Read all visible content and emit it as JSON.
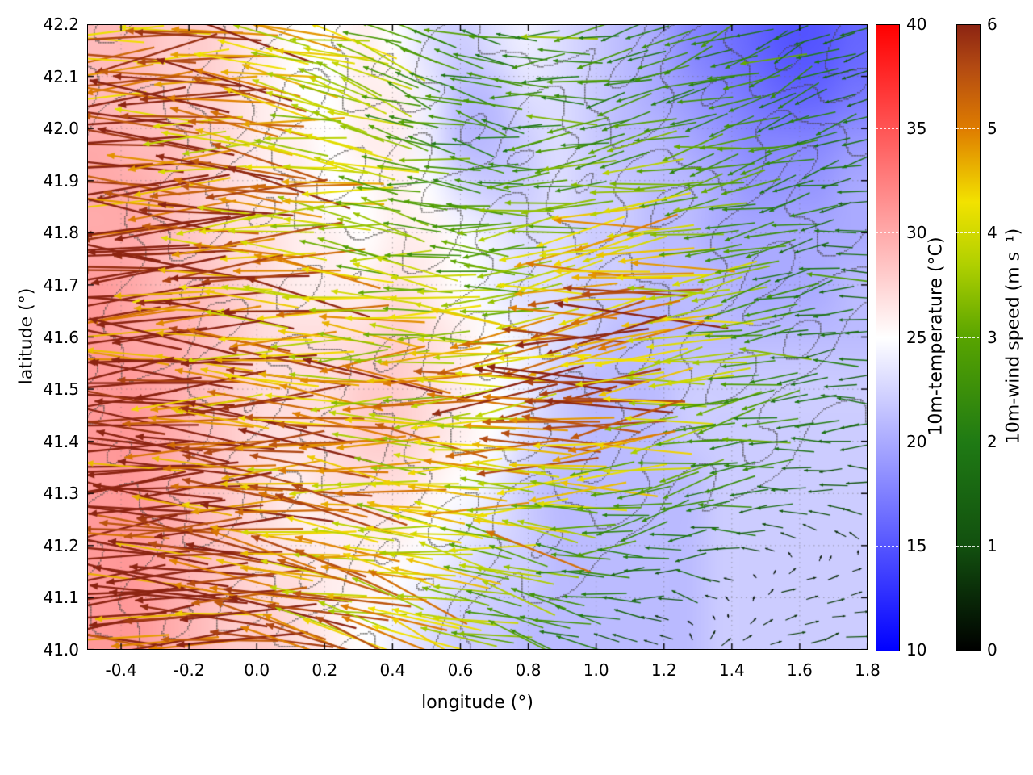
{
  "figure": {
    "title": "",
    "xlabel": "longitude (°)",
    "ylabel": "latitude (°)"
  },
  "chart_data": {
    "type": "heatmap",
    "title": "",
    "xlabel": "longitude (°)",
    "ylabel": "latitude (°)",
    "xlim": [
      -0.5,
      1.8
    ],
    "ylim": [
      41.0,
      42.2
    ],
    "grid": "dotted",
    "overlays": [
      "wind-vector-arrows",
      "terrain-contour-lines"
    ],
    "x_ticks": [
      -0.4,
      -0.2,
      0.0,
      0.2,
      0.4,
      0.6,
      0.8,
      1.0,
      1.2,
      1.4,
      1.6,
      1.8
    ],
    "x_tick_labels": [
      "-0.4",
      "-0.2",
      "0.0",
      "0.2",
      "0.4",
      "0.6",
      "0.8",
      "1.0",
      "1.2",
      "1.4",
      "1.6",
      "1.8"
    ],
    "y_ticks": [
      41.0,
      41.1,
      41.2,
      41.3,
      41.4,
      41.5,
      41.6,
      41.7,
      41.8,
      41.9,
      42.0,
      42.1,
      42.2
    ],
    "y_tick_labels": [
      "41.0",
      "41.1",
      "41.2",
      "41.3",
      "41.4",
      "41.5",
      "41.6",
      "41.7",
      "41.8",
      "41.9",
      "42.0",
      "42.1",
      "42.2"
    ],
    "colorbar_temperature": {
      "label": "10m-temperature (°C)",
      "min": 10,
      "max": 40,
      "ticks": [
        10,
        15,
        20,
        25,
        30,
        35,
        40
      ],
      "tick_labels": [
        "10",
        "15",
        "20",
        "25",
        "30",
        "35",
        "40"
      ],
      "stops": [
        [
          10,
          "#0000ff"
        ],
        [
          25,
          "#ffffff"
        ],
        [
          40,
          "#ff0000"
        ]
      ]
    },
    "colorbar_wind": {
      "label": "10m-wind speed (m s⁻¹)",
      "min": 0,
      "max": 6,
      "ticks": [
        0,
        1,
        2,
        3,
        4,
        5,
        6
      ],
      "tick_labels": [
        "0",
        "1",
        "2",
        "3",
        "4",
        "5",
        "6"
      ],
      "stops": [
        [
          0,
          "#000000"
        ],
        [
          1,
          "#12500f"
        ],
        [
          2,
          "#1f7a14"
        ],
        [
          3,
          "#58a400"
        ],
        [
          3.7,
          "#b0d000"
        ],
        [
          4.3,
          "#f2e200"
        ],
        [
          5,
          "#df7d00"
        ],
        [
          5.6,
          "#b34a12"
        ],
        [
          6,
          "#8c2412"
        ]
      ]
    },
    "temperature_grid": {
      "units": "°C",
      "lon_range": [
        -0.5,
        1.8
      ],
      "lat_range": [
        41.0,
        42.2
      ],
      "order": "rows north to south",
      "values": [
        [
          29,
          29,
          28,
          28,
          27,
          26,
          25,
          25,
          26,
          25,
          23,
          22,
          23,
          24,
          23,
          22,
          21,
          20,
          18,
          17,
          16,
          15,
          15,
          16
        ],
        [
          29,
          29,
          28,
          28,
          27,
          26,
          25,
          25,
          26,
          26,
          24,
          21,
          21,
          23,
          23,
          22,
          21,
          20,
          19,
          18,
          17,
          16,
          16,
          17
        ],
        [
          30,
          29,
          29,
          28,
          27,
          26,
          26,
          25,
          26,
          26,
          24,
          21,
          21,
          22,
          23,
          22,
          21,
          21,
          20,
          19,
          18,
          18,
          18,
          19
        ],
        [
          30,
          30,
          29,
          28,
          27,
          26,
          26,
          25,
          25,
          26,
          25,
          23,
          22,
          22,
          23,
          22,
          22,
          21,
          21,
          20,
          19,
          19,
          19,
          20
        ],
        [
          30,
          30,
          29,
          28,
          27,
          27,
          26,
          26,
          25,
          26,
          26,
          25,
          24,
          23,
          23,
          22,
          22,
          21,
          21,
          20,
          20,
          20,
          20,
          20
        ],
        [
          31,
          30,
          29,
          29,
          28,
          27,
          26,
          26,
          26,
          27,
          26,
          25,
          24,
          23,
          23,
          22,
          22,
          21,
          21,
          21,
          20,
          20,
          20,
          21
        ],
        [
          31,
          30,
          30,
          29,
          28,
          27,
          27,
          27,
          27,
          28,
          27,
          26,
          25,
          24,
          23,
          22,
          21,
          21,
          21,
          21,
          21,
          21,
          21,
          21
        ],
        [
          31,
          31,
          30,
          29,
          28,
          27,
          27,
          27,
          28,
          28,
          27,
          26,
          25,
          24,
          22,
          21,
          21,
          21,
          22,
          22,
          22,
          22,
          22,
          22
        ],
        [
          31,
          31,
          30,
          29,
          28,
          27,
          27,
          27,
          28,
          28,
          27,
          26,
          25,
          23,
          22,
          21,
          21,
          21,
          22,
          22,
          22,
          22,
          22,
          22
        ],
        [
          31,
          31,
          30,
          29,
          28,
          27,
          26,
          27,
          27,
          27,
          26,
          25,
          24,
          22,
          21,
          21,
          21,
          21,
          21,
          22,
          22,
          22,
          22,
          22
        ],
        [
          31,
          31,
          30,
          29,
          28,
          27,
          26,
          26,
          26,
          26,
          25,
          24,
          23,
          22,
          21,
          21,
          21,
          21,
          21,
          22,
          22,
          22,
          22,
          22
        ],
        [
          31,
          31,
          30,
          29,
          28,
          27,
          27,
          26,
          26,
          25,
          24,
          23,
          22,
          22,
          21,
          21,
          21,
          21,
          21,
          22,
          22,
          22,
          22,
          22
        ],
        [
          31,
          31,
          30,
          29,
          28,
          28,
          27,
          26,
          25,
          24,
          23,
          22,
          22,
          21,
          21,
          21,
          21,
          21,
          21,
          22,
          22,
          22,
          22,
          22
        ]
      ]
    },
    "wind_grid": {
      "units": "m s⁻¹",
      "lon_range": [
        -0.5,
        1.8
      ],
      "lat_range": [
        41.0,
        42.2
      ],
      "order": "rows north to south, each cell [u,v]",
      "uv": [
        [
          [
            -5.5,
            -0.5
          ],
          [
            -5,
            -0.5
          ],
          [
            -4.5,
            0.5
          ],
          [
            -4,
            0.5
          ],
          [
            -3,
            1
          ],
          [
            -2.5,
            0.5
          ],
          [
            -2,
            -0.5
          ],
          [
            -2.5,
            -0.5
          ],
          [
            -2,
            -1
          ],
          [
            -1.5,
            -0.5
          ],
          [
            -1.5,
            -0.5
          ]
        ],
        [
          [
            -5.5,
            -0.5
          ],
          [
            -5,
            0
          ],
          [
            -4.5,
            0.5
          ],
          [
            -3.5,
            1
          ],
          [
            -2.5,
            1
          ],
          [
            -2,
            0.5
          ],
          [
            -2.5,
            0
          ],
          [
            -2,
            -0.5
          ],
          [
            -2,
            -0.5
          ],
          [
            -2,
            -1
          ],
          [
            -1.5,
            -0.5
          ]
        ],
        [
          [
            -5.5,
            0
          ],
          [
            -5,
            0
          ],
          [
            -4.5,
            0.5
          ],
          [
            -4,
            0.5
          ],
          [
            -3,
            0.5
          ],
          [
            -2,
            0.5
          ],
          [
            -2.5,
            -0.5
          ],
          [
            -3,
            -0.5
          ],
          [
            -2.5,
            -0.5
          ],
          [
            -2,
            -0.5
          ],
          [
            -1.5,
            -0.5
          ]
        ],
        [
          [
            -5.5,
            0
          ],
          [
            -5.5,
            0
          ],
          [
            -5,
            0
          ],
          [
            -4,
            0.5
          ],
          [
            -3,
            0.5
          ],
          [
            -2.5,
            0
          ],
          [
            -3.5,
            -0.5
          ],
          [
            -4,
            -0.5
          ],
          [
            -3,
            -0.5
          ],
          [
            -2,
            -0.5
          ],
          [
            -1.5,
            0
          ]
        ],
        [
          [
            -6,
            0
          ],
          [
            -5.5,
            0
          ],
          [
            -5,
            0
          ],
          [
            -4.5,
            0.5
          ],
          [
            -3.5,
            0
          ],
          [
            -3,
            0
          ],
          [
            -4.5,
            -0.5
          ],
          [
            -5,
            -0.5
          ],
          [
            -3.5,
            -0.5
          ],
          [
            -2,
            -0.5
          ],
          [
            -1.5,
            0
          ]
        ],
        [
          [
            -6,
            0
          ],
          [
            -5.5,
            0
          ],
          [
            -5,
            0
          ],
          [
            -4.5,
            0
          ],
          [
            -4,
            0
          ],
          [
            -4.5,
            0
          ],
          [
            -5.5,
            -0.5
          ],
          [
            -5,
            -0.5
          ],
          [
            -3,
            -0.5
          ],
          [
            -2,
            0
          ],
          [
            -1.5,
            0
          ]
        ],
        [
          [
            -6,
            0
          ],
          [
            -5.5,
            0
          ],
          [
            -5,
            0
          ],
          [
            -4.5,
            0
          ],
          [
            -4,
            0.5
          ],
          [
            -4.5,
            0
          ],
          [
            -5,
            0
          ],
          [
            -4,
            -0.5
          ],
          [
            -2.5,
            -0.5
          ],
          [
            -2,
            -0.3
          ],
          [
            -1.2,
            0
          ]
        ],
        [
          [
            -6,
            0
          ],
          [
            -5.5,
            0
          ],
          [
            -5,
            0.5
          ],
          [
            -4.5,
            0.5
          ],
          [
            -4,
            0.5
          ],
          [
            -4,
            0.5
          ],
          [
            -3.5,
            0
          ],
          [
            -2.5,
            -0.5
          ],
          [
            -1.8,
            -0.4
          ],
          [
            -1.2,
            0.2
          ],
          [
            -0.9,
            0.2
          ]
        ],
        [
          [
            -6,
            0
          ],
          [
            -5.5,
            0
          ],
          [
            -5,
            0.5
          ],
          [
            -4.5,
            1
          ],
          [
            -4,
            1
          ],
          [
            -3.5,
            1
          ],
          [
            -2.5,
            0.5
          ],
          [
            -1.5,
            0
          ],
          [
            -0.8,
            0.2
          ],
          [
            0.5,
            0.2
          ],
          [
            0.6,
            0.2
          ]
        ],
        [
          [
            -6,
            0
          ],
          [
            -5.5,
            0
          ],
          [
            -5,
            0.5
          ],
          [
            -4.5,
            1
          ],
          [
            -4,
            1.5
          ],
          [
            -3,
            1
          ],
          [
            -2,
            0.5
          ],
          [
            -1,
            0.3
          ],
          [
            0.5,
            0.3
          ],
          [
            0.7,
            0.2
          ],
          [
            0.8,
            0.2
          ]
        ]
      ]
    },
    "elevation_grid": {
      "contour_interval": 100,
      "order": "rows north to south",
      "values": [
        [
          520,
          560,
          600,
          640,
          600,
          560,
          620,
          680,
          640,
          580,
          620,
          660,
          700,
          640,
          600,
          640,
          680,
          620
        ],
        [
          480,
          520,
          560,
          600,
          560,
          520,
          580,
          640,
          600,
          540,
          560,
          600,
          640,
          600,
          560,
          600,
          640,
          580
        ],
        [
          440,
          480,
          520,
          560,
          520,
          560,
          600,
          560,
          520,
          480,
          520,
          560,
          600,
          560,
          520,
          480,
          520,
          480
        ],
        [
          400,
          440,
          480,
          520,
          480,
          520,
          560,
          520,
          480,
          440,
          480,
          520,
          480,
          440,
          420,
          400,
          420,
          400
        ],
        [
          380,
          420,
          460,
          480,
          440,
          480,
          520,
          480,
          440,
          400,
          440,
          480,
          440,
          400,
          380,
          360,
          340,
          320
        ],
        [
          360,
          400,
          440,
          460,
          420,
          440,
          480,
          440,
          400,
          360,
          400,
          440,
          400,
          360,
          320,
          280,
          260,
          240
        ],
        [
          340,
          380,
          420,
          440,
          400,
          420,
          440,
          400,
          360,
          320,
          360,
          380,
          340,
          300,
          260,
          220,
          180,
          160
        ],
        [
          320,
          360,
          400,
          420,
          380,
          400,
          420,
          380,
          340,
          280,
          300,
          320,
          280,
          240,
          200,
          160,
          120,
          100
        ],
        [
          300,
          340,
          380,
          400,
          360,
          380,
          380,
          340,
          300,
          240,
          240,
          240,
          200,
          160,
          120,
          80,
          40,
          20
        ],
        [
          280,
          320,
          360,
          380,
          340,
          340,
          320,
          280,
          240,
          180,
          160,
          140,
          100,
          60,
          30,
          10,
          0,
          0
        ],
        [
          260,
          300,
          340,
          360,
          320,
          300,
          280,
          240,
          180,
          120,
          80,
          60,
          30,
          10,
          0,
          0,
          0,
          0
        ],
        [
          240,
          280,
          320,
          340,
          300,
          280,
          240,
          180,
          120,
          60,
          30,
          10,
          0,
          0,
          0,
          0,
          0,
          0
        ]
      ]
    }
  }
}
